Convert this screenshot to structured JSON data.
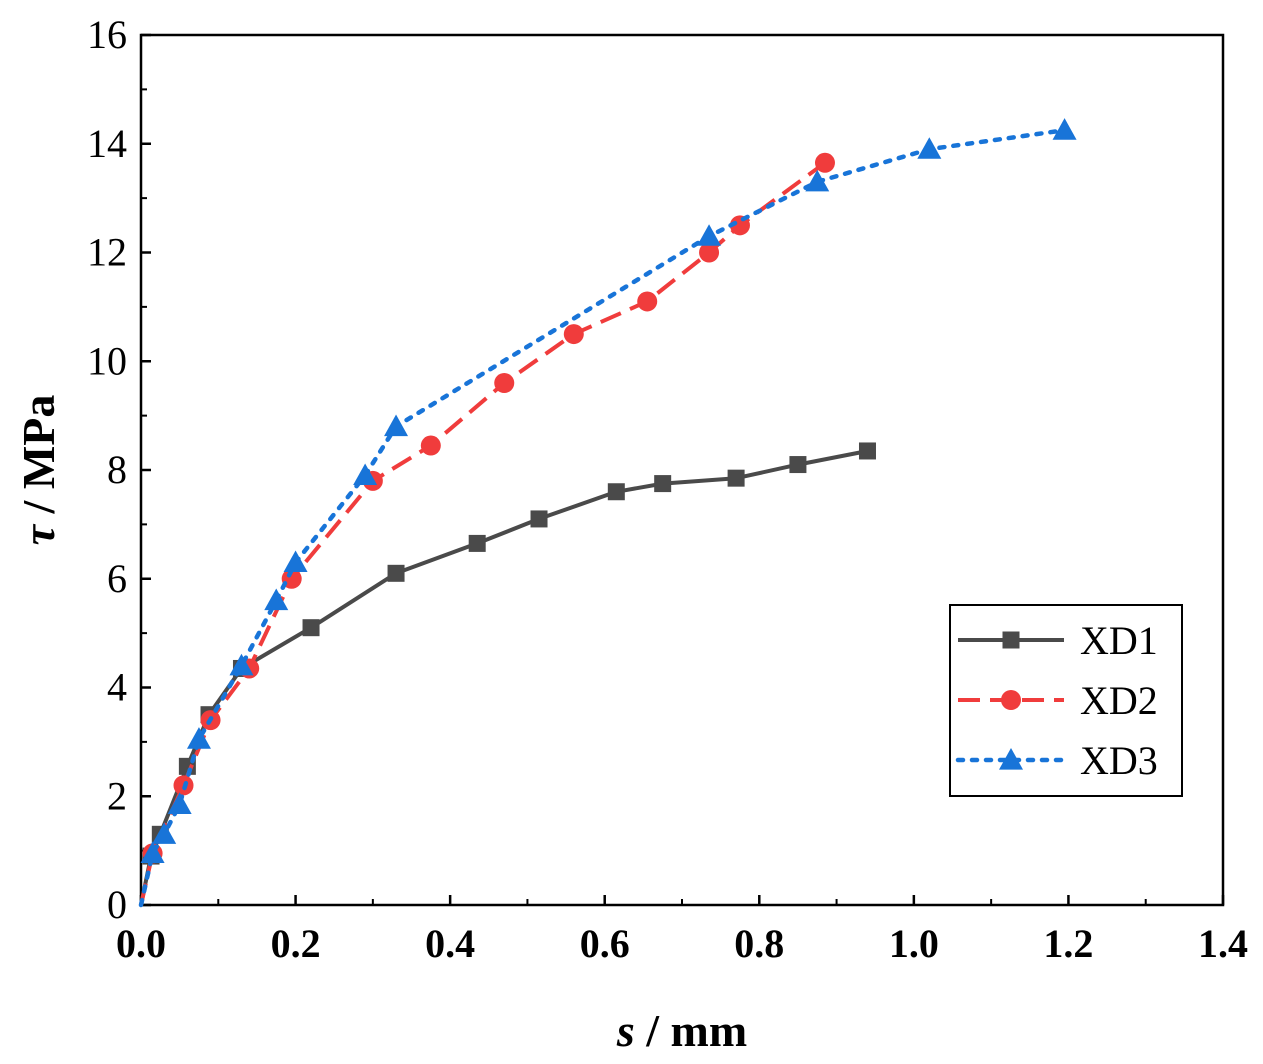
{
  "chart_data": {
    "type": "line",
    "xlabel_var": "s",
    "xlabel_unit": " / mm",
    "ylabel_var": "τ",
    "ylabel_unit": " / MPa",
    "xlim": [
      0.0,
      1.4
    ],
    "ylim": [
      0,
      16
    ],
    "x_ticks": [
      "0.0",
      "0.2",
      "0.4",
      "0.6",
      "0.8",
      "1.0",
      "1.2",
      "1.4"
    ],
    "y_ticks": [
      "0",
      "2",
      "4",
      "6",
      "8",
      "10",
      "12",
      "14",
      "16"
    ],
    "grid": false,
    "legend_position": "bottom-right",
    "series": [
      {
        "name": "XD1",
        "color": "#4a4a4a",
        "marker": "square",
        "line_style": "solid",
        "x": [
          0.0,
          0.013,
          0.025,
          0.06,
          0.088,
          0.13,
          0.22,
          0.33,
          0.435,
          0.515,
          0.615,
          0.675,
          0.77,
          0.85,
          0.94
        ],
        "y": [
          0.0,
          0.9,
          1.3,
          2.55,
          3.5,
          4.35,
          5.1,
          6.1,
          6.65,
          7.1,
          7.6,
          7.75,
          7.85,
          8.1,
          8.35
        ]
      },
      {
        "name": "XD2",
        "color": "#f03c3c",
        "marker": "circle",
        "line_style": "dashed",
        "x": [
          0.0,
          0.015,
          0.055,
          0.09,
          0.14,
          0.195,
          0.3,
          0.375,
          0.47,
          0.56,
          0.655,
          0.735,
          0.775,
          0.885
        ],
        "y": [
          0.0,
          0.95,
          2.2,
          3.4,
          4.35,
          6.0,
          7.8,
          8.45,
          9.6,
          10.5,
          11.1,
          12.0,
          12.5,
          13.65
        ]
      },
      {
        "name": "XD3",
        "color": "#1874d8",
        "marker": "triangle",
        "line_style": "dotted",
        "x": [
          0.0,
          0.015,
          0.03,
          0.05,
          0.075,
          0.13,
          0.175,
          0.2,
          0.29,
          0.33,
          0.735,
          0.875,
          1.02,
          1.195
        ],
        "y": [
          0.0,
          0.95,
          1.3,
          1.85,
          3.05,
          4.4,
          5.6,
          6.3,
          7.9,
          8.8,
          12.3,
          13.3,
          13.9,
          14.25
        ]
      }
    ]
  }
}
